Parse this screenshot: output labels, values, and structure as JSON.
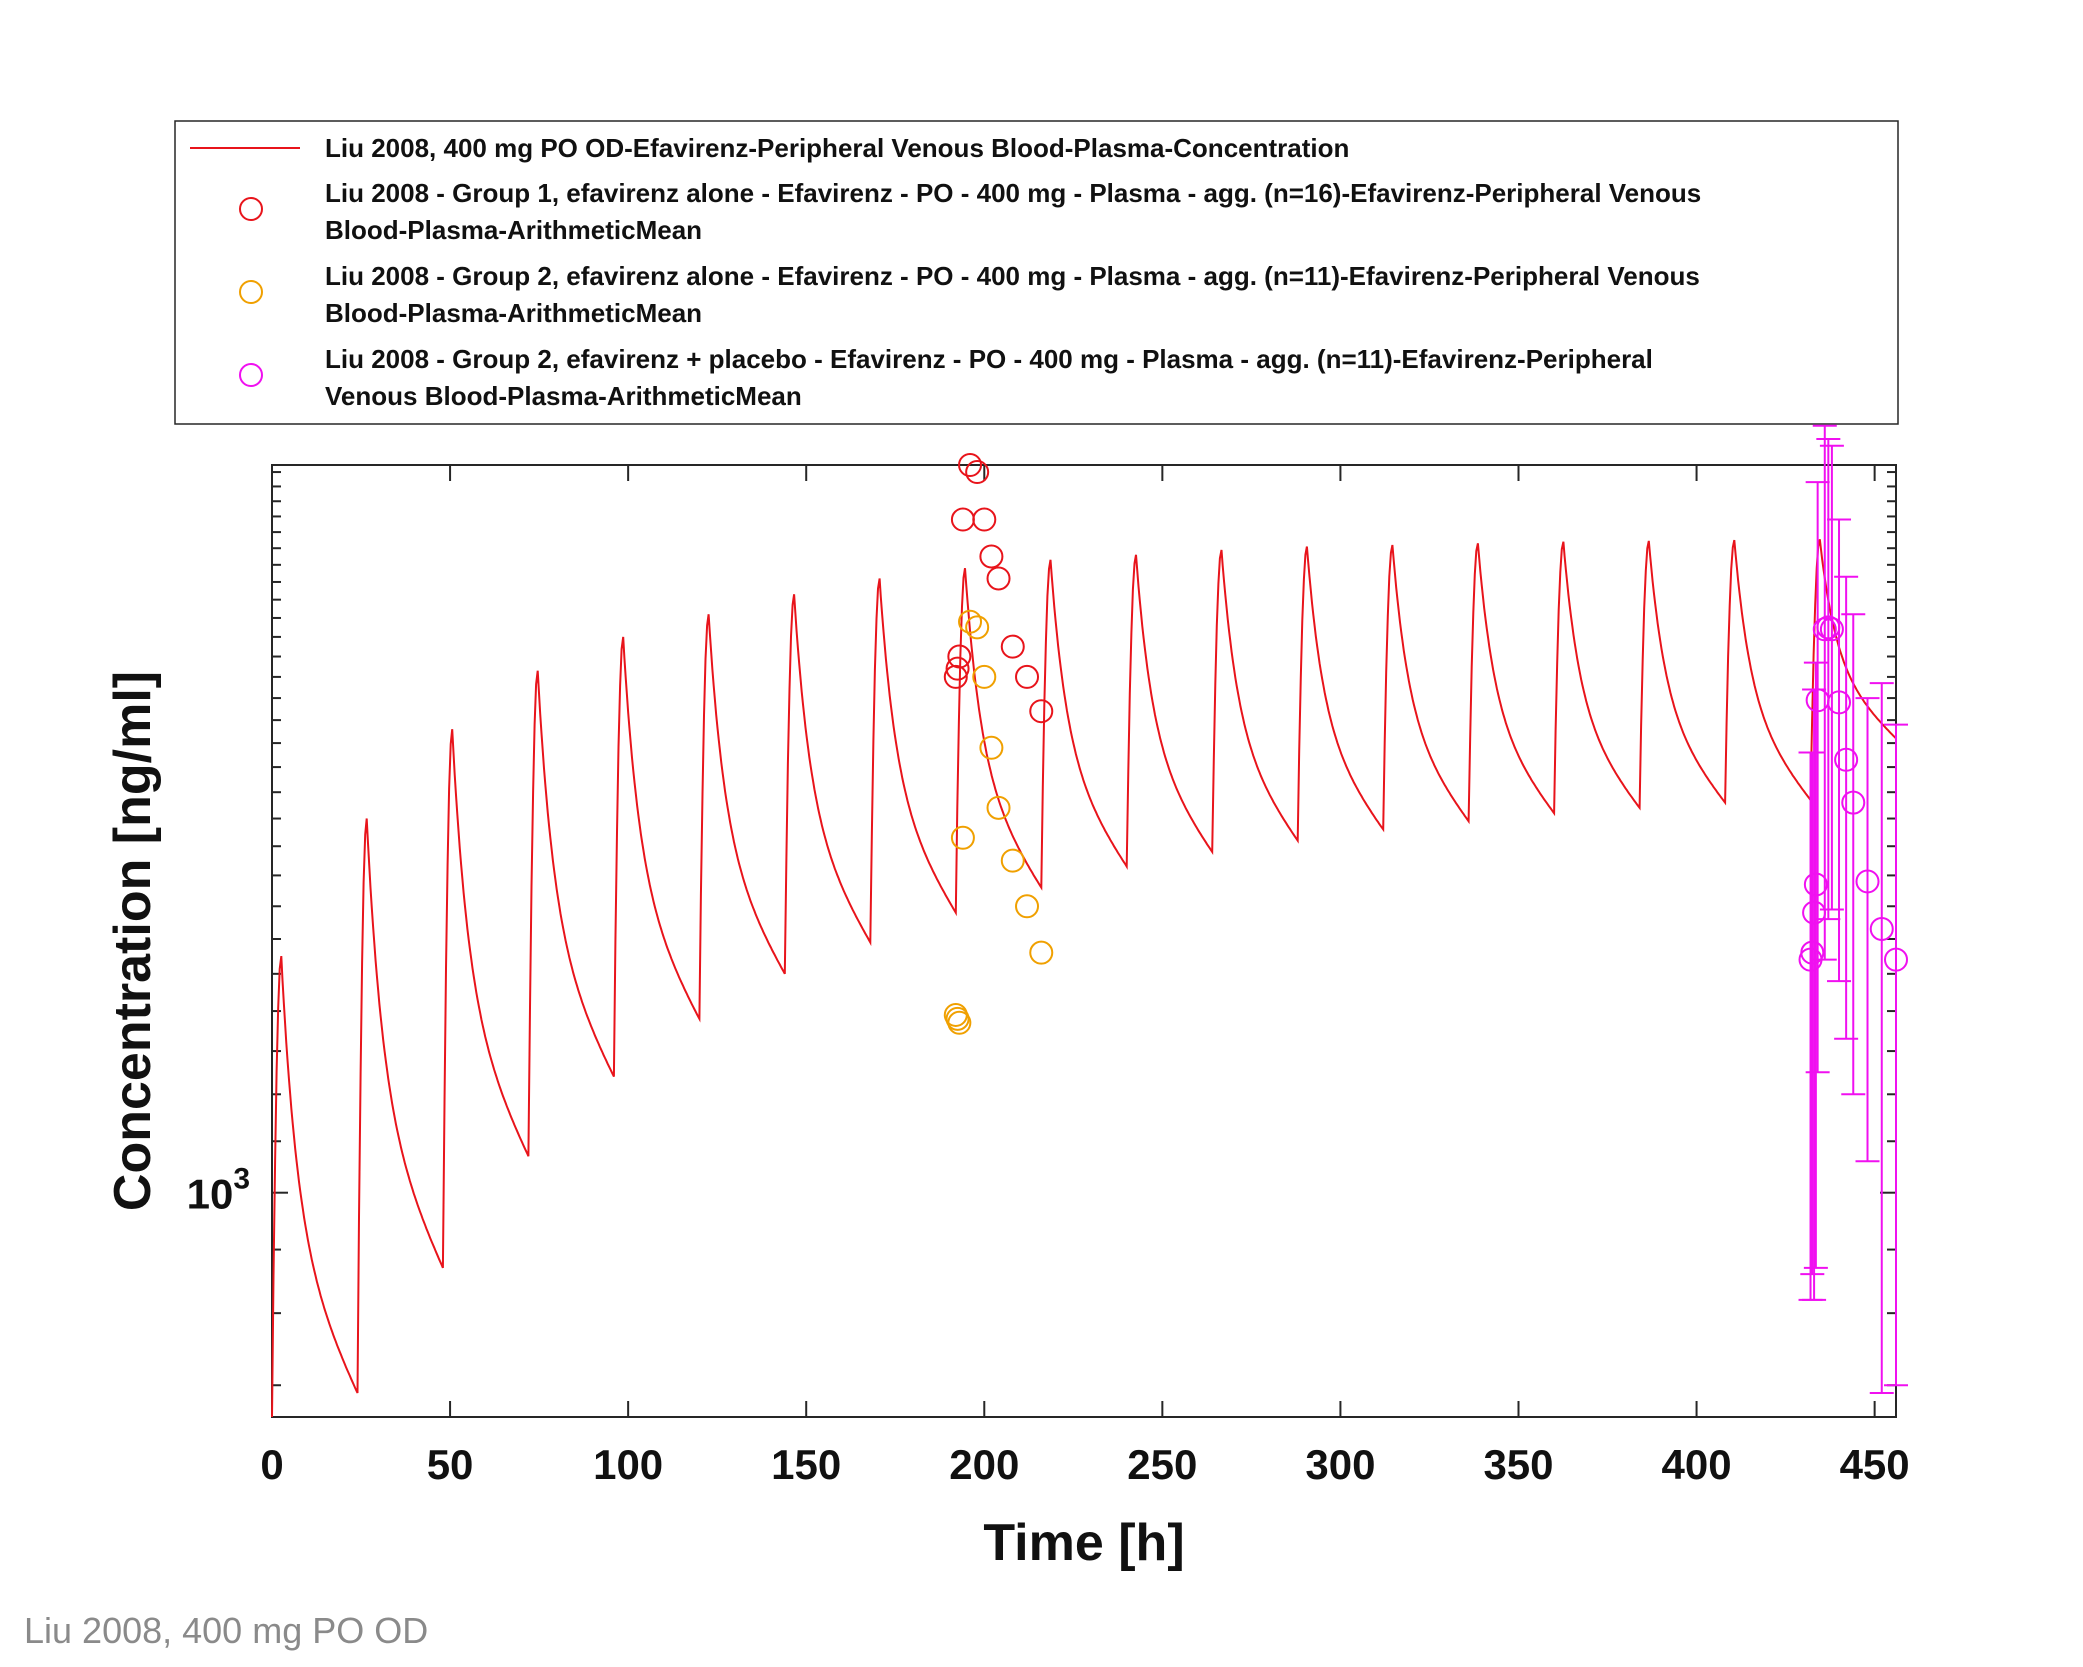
{
  "footer_caption": "Liu 2008, 400 mg PO OD",
  "colors": {
    "simulation": "#e8141b",
    "group1": "#e8141b",
    "group2_alone": "#f0a000",
    "group2_placebo": "#f010f0"
  },
  "chart_data": {
    "type": "line",
    "xlabel": "Time [h]",
    "ylabel": "Concentration [ng/ml]",
    "xlim": [
      0,
      456
    ],
    "ylim": [
      660,
      3850
    ],
    "yscale": "log",
    "xticks": [
      "0",
      "50",
      "100",
      "150",
      "200",
      "250",
      "300",
      "350",
      "400",
      "450"
    ],
    "yticks": [
      {
        "base": "10",
        "exp": "3"
      }
    ],
    "legend_position": "top (outside plot)",
    "grid": false,
    "legend": [
      {
        "type": "line",
        "lines": [
          "Liu 2008, 400 mg PO OD-Efavirenz-Peripheral Venous Blood-Plasma-Concentration"
        ]
      },
      {
        "type": "marker",
        "lines": [
          "Liu 2008 - Group 1, efavirenz alone - Efavirenz - PO - 400 mg - Plasma - agg. (n=16)-Efavirenz-Peripheral Venous",
          "Blood-Plasma-ArithmeticMean"
        ]
      },
      {
        "type": "marker",
        "lines": [
          "Liu 2008 - Group 2, efavirenz alone - Efavirenz - PO - 400 mg - Plasma - agg. (n=11)-Efavirenz-Peripheral Venous",
          "Blood-Plasma-ArithmeticMean"
        ]
      },
      {
        "type": "marker",
        "lines": [
          "Liu 2008 - Group 2, efavirenz + placebo - Efavirenz - PO - 400 mg - Plasma - agg. (n=11)-Efavirenz-Peripheral",
          "Venous Blood-Plasma-ArithmeticMean"
        ]
      }
    ],
    "simulation": {
      "name": "Liu 2008, 400 mg PO OD-Efavirenz-Peripheral Venous Blood-Plasma-Concentration",
      "dose_interval_h": 24,
      "doses": 19,
      "peaks": [
        1550,
        2000,
        2360,
        2630,
        2800,
        2920,
        3030,
        3120,
        3180,
        3230,
        3260,
        3290,
        3310,
        3320,
        3330,
        3340,
        3345,
        3350,
        3355
      ],
      "troughs": [
        690,
        870,
        1070,
        1240,
        1380,
        1500,
        1590,
        1680,
        1760,
        1830,
        1880,
        1920,
        1960,
        1990,
        2020,
        2040,
        2060,
        2070,
        2080
      ],
      "end_value": 2320
    },
    "series": [
      {
        "name": "Liu 2008 - Group 1, efavirenz alone - Efavirenz - PO - 400 mg - Plasma - agg. (n=16)-Efavirenz-Peripheral Venous Blood-Plasma-ArithmeticMean",
        "x": [
          192.0,
          192.5,
          193.0,
          194.0,
          196.0,
          198.0,
          200.0,
          202.0,
          204.0,
          208.0,
          212.0,
          216.0
        ],
        "y": [
          2600,
          2640,
          2700,
          3480,
          3850,
          3800,
          3480,
          3250,
          3120,
          2750,
          2600,
          2440
        ]
      },
      {
        "name": "Liu 2008 - Group 2, efavirenz alone - Efavirenz - PO - 400 mg - Plasma - agg. (n=11)-Efavirenz-Peripheral Venous Blood-Plasma-ArithmeticMean",
        "x": [
          192.0,
          192.5,
          193.0,
          194.0,
          196.0,
          198.0,
          200.0,
          202.0,
          204.0,
          208.0,
          212.0,
          216.0
        ],
        "y": [
          1390,
          1380,
          1370,
          1930,
          2880,
          2850,
          2600,
          2280,
          2040,
          1850,
          1700,
          1560
        ]
      },
      {
        "name": "Liu 2008 - Group 2, efavirenz + placebo - Efavirenz - PO - 400 mg - Plasma - agg. (n=11)-Efavirenz-Peripheral Venous Blood-Plasma-ArithmeticMean",
        "x": [
          432.0,
          432.5,
          433.0,
          433.5,
          434.0,
          436.0,
          437.0,
          438.0,
          440.0,
          442.0,
          444.0,
          448.0,
          452.0,
          456.0
        ],
        "y": [
          1540,
          1560,
          1680,
          1770,
          2490,
          2840,
          2850,
          2840,
          2480,
          2230,
          2060,
          1780,
          1630,
          1540
        ],
        "err": [
          720,
          700,
          860,
          900,
          1240,
          1300,
          1190,
          1150,
          1000,
          900,
          860,
          720,
          940,
          840
        ]
      }
    ]
  }
}
